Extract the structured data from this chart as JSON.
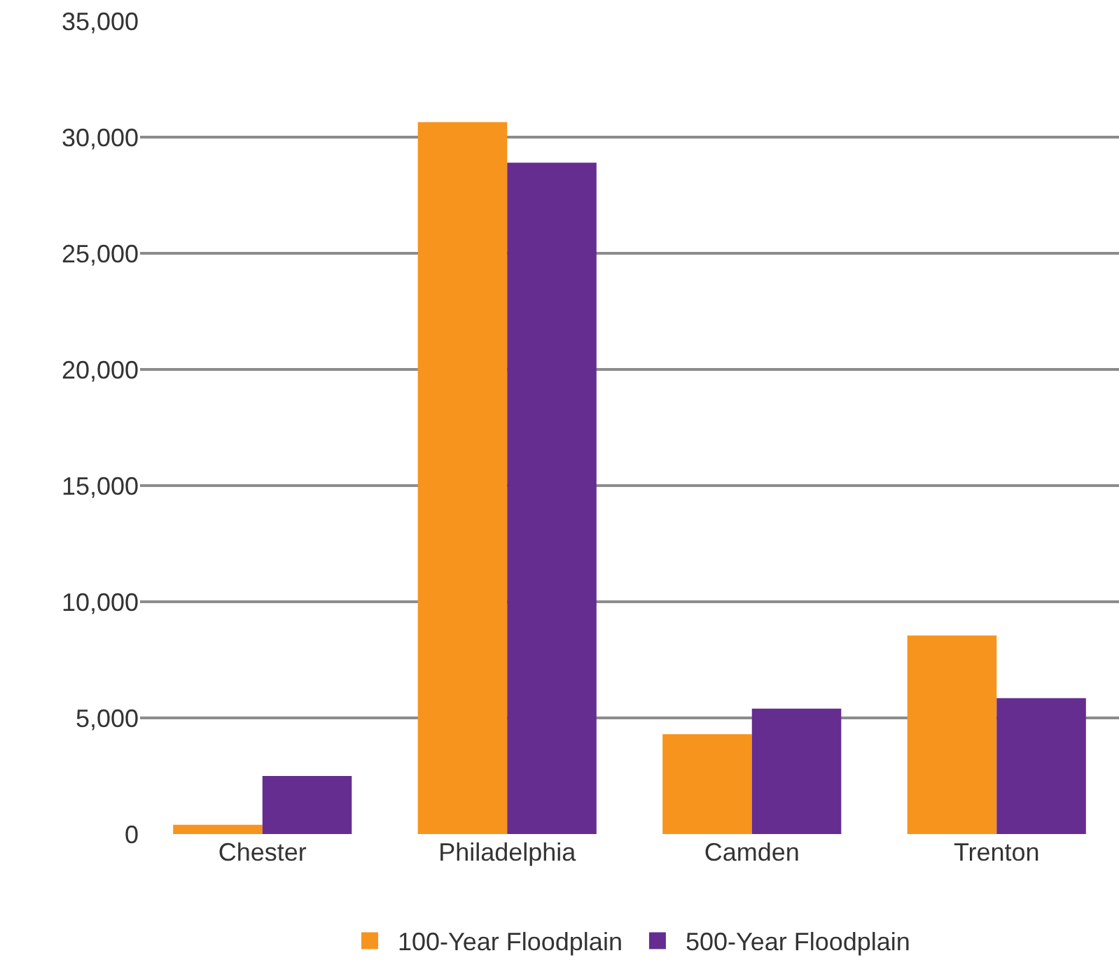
{
  "chart_data": {
    "type": "bar",
    "categories": [
      "Chester",
      "Philadelphia",
      "Camden",
      "Trenton"
    ],
    "series": [
      {
        "name": "100-Year Floodplain",
        "color": "#f7941d",
        "values": [
          400,
          30650,
          4300,
          8550
        ]
      },
      {
        "name": "500-Year Floodplain",
        "color": "#652d90",
        "values": [
          2500,
          28900,
          5400,
          5850
        ]
      }
    ],
    "ylim": [
      0,
      35000
    ],
    "yticks": [
      {
        "value": 0,
        "label": "0"
      },
      {
        "value": 5000,
        "label": "5,000"
      },
      {
        "value": 10000,
        "label": "10,000"
      },
      {
        "value": 15000,
        "label": "15,000"
      },
      {
        "value": 20000,
        "label": "20,000"
      },
      {
        "value": 25000,
        "label": "25,000"
      },
      {
        "value": 30000,
        "label": "30,000"
      },
      {
        "value": 35000,
        "label": "35,000"
      }
    ],
    "grid": "y",
    "legend": "bottom"
  }
}
